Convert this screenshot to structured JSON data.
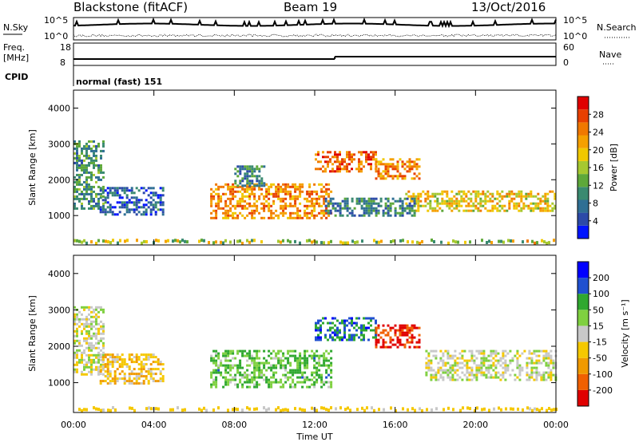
{
  "header": {
    "station": "Blackstone (fitACF)",
    "beam": "Beam 19",
    "date": "13/Oct/2016"
  },
  "top_panels": {
    "nsky_label": "N.Sky",
    "nsearch_label": "N.Search",
    "noise_ticks": [
      "10^5",
      "10^0"
    ],
    "freq_label": "Freq.",
    "freq_unit": "[MHz]",
    "freq_ticks": [
      "18",
      "8"
    ],
    "nave_label": "Nave",
    "nave_ticks": [
      "60",
      "0"
    ],
    "cpid_label": "CPID",
    "cpid_value": "normal (fast) 151"
  },
  "chart_data": [
    {
      "type": "heatmap",
      "quantity": "power",
      "ylabel": "Slant Range [km]",
      "xlabel": "",
      "x_unit": "hours UT",
      "xlim": [
        0,
        24
      ],
      "ylim": [
        180,
        4500
      ],
      "yticks": [
        "1000",
        "2000",
        "3000",
        "4000"
      ],
      "colorbar": {
        "label": "Power [dB]",
        "ticks": [
          "28",
          "24",
          "20",
          "16",
          "12",
          "8",
          "4"
        ],
        "range": [
          0,
          30
        ],
        "colors": [
          "#0014ff",
          "#2c4aa8",
          "#2f6f94",
          "#3a8a70",
          "#5ea83a",
          "#a6c830",
          "#f0c800",
          "#f5a000",
          "#f07800",
          "#e84000",
          "#e00000"
        ]
      },
      "echo_regions": [
        {
          "t0": 0.0,
          "t1": 1.5,
          "r0": 1200,
          "r1": 3100,
          "level": 10
        },
        {
          "t0": 1.3,
          "t1": 4.5,
          "r0": 1000,
          "r1": 1800,
          "level": 6
        },
        {
          "t0": 6.8,
          "t1": 12.8,
          "r0": 900,
          "r1": 1900,
          "level": 22
        },
        {
          "t0": 8.0,
          "t1": 9.5,
          "r0": 1800,
          "r1": 2400,
          "level": 8
        },
        {
          "t0": 12.0,
          "t1": 15.0,
          "r0": 2200,
          "r1": 2800,
          "level": 24
        },
        {
          "t0": 15.0,
          "t1": 17.2,
          "r0": 2000,
          "r1": 2600,
          "level": 22
        },
        {
          "t0": 16.5,
          "t1": 24.0,
          "r0": 1100,
          "r1": 1700,
          "level": 18
        },
        {
          "t0": 12.5,
          "t1": 17.0,
          "r0": 1000,
          "r1": 1500,
          "level": 8
        }
      ]
    },
    {
      "type": "heatmap",
      "quantity": "velocity",
      "ylabel": "Slant Range [km]",
      "xlabel": "Time UT",
      "x_unit": "hours UT",
      "xlim": [
        0,
        24
      ],
      "ylim": [
        180,
        4500
      ],
      "xticks": [
        "00:00",
        "04:00",
        "08:00",
        "12:00",
        "16:00",
        "20:00",
        "00:00"
      ],
      "yticks": [
        "1000",
        "2000",
        "3000",
        "4000"
      ],
      "colorbar": {
        "label": "Velocity [m s⁻¹]",
        "ticks": [
          "200",
          "100",
          "50",
          "15",
          "-15",
          "-50",
          "-100",
          "-200"
        ],
        "range": [
          -250,
          250
        ],
        "colors": [
          "#e00000",
          "#f06000",
          "#f09a00",
          "#f5c800",
          "#c8c8c8",
          "#7fd040",
          "#30a830",
          "#2050d0",
          "#0000ff"
        ]
      },
      "echo_regions": [
        {
          "t0": 0.0,
          "t1": 1.5,
          "r0": 1200,
          "r1": 3100,
          "level": 0
        },
        {
          "t0": 1.3,
          "t1": 4.5,
          "r0": 1000,
          "r1": 1800,
          "level": -60
        },
        {
          "t0": 6.8,
          "t1": 12.8,
          "r0": 900,
          "r1": 1900,
          "level": 80
        },
        {
          "t0": 12.0,
          "t1": 15.0,
          "r0": 2200,
          "r1": 2800,
          "level": 150
        },
        {
          "t0": 15.0,
          "t1": 17.2,
          "r0": 2000,
          "r1": 2600,
          "level": -200
        },
        {
          "t0": 17.5,
          "t1": 24.0,
          "r0": 1100,
          "r1": 1900,
          "level": 0
        }
      ]
    }
  ]
}
